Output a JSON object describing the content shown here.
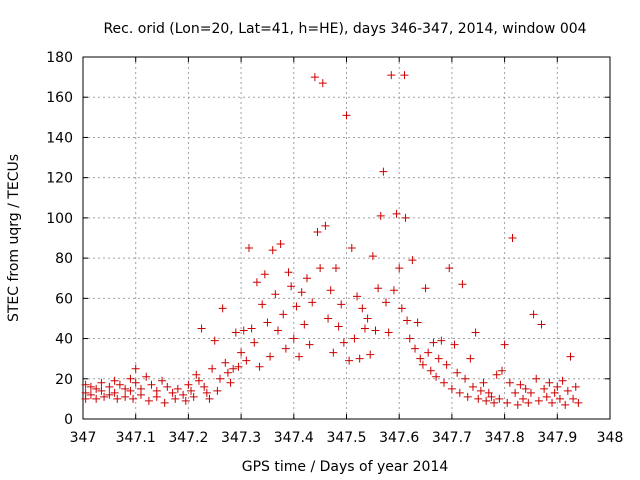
{
  "chart_data": {
    "type": "scatter",
    "title": "Rec. orid (Lon=20, Lat=41, h=HE), days 346-347, 2014, window 004",
    "xlabel": "GPS time / Days of year 2014",
    "ylabel": "STEC from uqrg / TECUs",
    "xlim": [
      347,
      348
    ],
    "ylim": [
      0,
      180
    ],
    "xticks": [
      "347",
      "347.1",
      "347.2",
      "347.3",
      "347.4",
      "347.5",
      "347.6",
      "347.7",
      "347.8",
      "347.9",
      "348"
    ],
    "yticks": [
      "0",
      "20",
      "40",
      "60",
      "80",
      "100",
      "120",
      "140",
      "160",
      "180"
    ],
    "grid": true,
    "marker": "plus",
    "color": "#cc0000",
    "series": [
      {
        "points": [
          [
            347.005,
            17
          ],
          [
            347.005,
            13
          ],
          [
            347.005,
            10
          ],
          [
            347.015,
            16
          ],
          [
            347.015,
            12
          ],
          [
            347.025,
            15
          ],
          [
            347.025,
            10
          ],
          [
            347.035,
            18
          ],
          [
            347.035,
            14
          ],
          [
            347.04,
            11
          ],
          [
            347.05,
            16
          ],
          [
            347.05,
            12
          ],
          [
            347.06,
            19
          ],
          [
            347.06,
            13
          ],
          [
            347.065,
            10
          ],
          [
            347.07,
            17
          ],
          [
            347.08,
            15
          ],
          [
            347.08,
            11
          ],
          [
            347.09,
            20
          ],
          [
            347.09,
            14
          ],
          [
            347.095,
            10
          ],
          [
            347.1,
            25
          ],
          [
            347.1,
            18
          ],
          [
            347.11,
            15
          ],
          [
            347.11,
            12
          ],
          [
            347.12,
            21
          ],
          [
            347.125,
            9
          ],
          [
            347.13,
            17
          ],
          [
            347.14,
            14
          ],
          [
            347.14,
            11
          ],
          [
            347.15,
            19
          ],
          [
            347.155,
            8
          ],
          [
            347.16,
            16
          ],
          [
            347.17,
            13
          ],
          [
            347.175,
            10
          ],
          [
            347.18,
            15
          ],
          [
            347.19,
            12
          ],
          [
            347.195,
            9
          ],
          [
            347.2,
            17
          ],
          [
            347.205,
            14
          ],
          [
            347.21,
            11
          ],
          [
            347.215,
            22
          ],
          [
            347.22,
            19
          ],
          [
            347.225,
            45
          ],
          [
            347.23,
            16
          ],
          [
            347.235,
            13
          ],
          [
            347.24,
            10
          ],
          [
            347.245,
            25
          ],
          [
            347.25,
            39
          ],
          [
            347.255,
            14
          ],
          [
            347.26,
            20
          ],
          [
            347.265,
            55
          ],
          [
            347.27,
            28
          ],
          [
            347.275,
            23
          ],
          [
            347.28,
            18
          ],
          [
            347.285,
            25
          ],
          [
            347.29,
            43
          ],
          [
            347.295,
            26
          ],
          [
            347.3,
            33
          ],
          [
            347.305,
            44
          ],
          [
            347.31,
            29
          ],
          [
            347.315,
            85
          ],
          [
            347.32,
            45
          ],
          [
            347.325,
            38
          ],
          [
            347.33,
            68
          ],
          [
            347.335,
            26
          ],
          [
            347.34,
            57
          ],
          [
            347.345,
            72
          ],
          [
            347.35,
            48
          ],
          [
            347.355,
            31
          ],
          [
            347.36,
            84
          ],
          [
            347.365,
            62
          ],
          [
            347.37,
            44
          ],
          [
            347.375,
            87
          ],
          [
            347.38,
            52
          ],
          [
            347.385,
            35
          ],
          [
            347.39,
            73
          ],
          [
            347.395,
            66
          ],
          [
            347.4,
            40
          ],
          [
            347.405,
            56
          ],
          [
            347.41,
            31
          ],
          [
            347.415,
            63
          ],
          [
            347.42,
            47
          ],
          [
            347.425,
            70
          ],
          [
            347.43,
            37
          ],
          [
            347.435,
            58
          ],
          [
            347.44,
            170
          ],
          [
            347.445,
            93
          ],
          [
            347.45,
            75
          ],
          [
            347.455,
            167
          ],
          [
            347.46,
            96
          ],
          [
            347.465,
            50
          ],
          [
            347.47,
            64
          ],
          [
            347.475,
            33
          ],
          [
            347.48,
            75
          ],
          [
            347.485,
            46
          ],
          [
            347.49,
            57
          ],
          [
            347.495,
            38
          ],
          [
            347.5,
            151
          ],
          [
            347.505,
            29
          ],
          [
            347.51,
            85
          ],
          [
            347.515,
            40
          ],
          [
            347.52,
            61
          ],
          [
            347.525,
            30
          ],
          [
            347.53,
            55
          ],
          [
            347.535,
            45
          ],
          [
            347.54,
            50
          ],
          [
            347.545,
            32
          ],
          [
            347.55,
            81
          ],
          [
            347.555,
            44
          ],
          [
            347.56,
            65
          ],
          [
            347.565,
            101
          ],
          [
            347.57,
            123
          ],
          [
            347.575,
            58
          ],
          [
            347.58,
            43
          ],
          [
            347.585,
            171
          ],
          [
            347.59,
            64
          ],
          [
            347.595,
            102
          ],
          [
            347.6,
            75
          ],
          [
            347.605,
            55
          ],
          [
            347.61,
            171
          ],
          [
            347.612,
            100
          ],
          [
            347.615,
            49
          ],
          [
            347.62,
            40
          ],
          [
            347.625,
            79
          ],
          [
            347.63,
            35
          ],
          [
            347.635,
            48
          ],
          [
            347.64,
            30
          ],
          [
            347.645,
            27
          ],
          [
            347.65,
            65
          ],
          [
            347.655,
            33
          ],
          [
            347.66,
            24
          ],
          [
            347.665,
            38
          ],
          [
            347.67,
            21
          ],
          [
            347.675,
            30
          ],
          [
            347.68,
            39
          ],
          [
            347.685,
            18
          ],
          [
            347.69,
            27
          ],
          [
            347.695,
            75
          ],
          [
            347.7,
            15
          ],
          [
            347.705,
            37
          ],
          [
            347.71,
            23
          ],
          [
            347.715,
            13
          ],
          [
            347.72,
            67
          ],
          [
            347.725,
            20
          ],
          [
            347.73,
            11
          ],
          [
            347.735,
            30
          ],
          [
            347.74,
            16
          ],
          [
            347.745,
            43
          ],
          [
            347.75,
            10
          ],
          [
            347.755,
            14
          ],
          [
            347.76,
            18
          ],
          [
            347.765,
            9
          ],
          [
            347.77,
            13
          ],
          [
            347.775,
            11
          ],
          [
            347.78,
            8
          ],
          [
            347.785,
            22
          ],
          [
            347.79,
            10
          ],
          [
            347.795,
            24
          ],
          [
            347.8,
            37
          ],
          [
            347.805,
            8
          ],
          [
            347.81,
            18
          ],
          [
            347.815,
            90
          ],
          [
            347.82,
            13
          ],
          [
            347.825,
            7
          ],
          [
            347.83,
            17
          ],
          [
            347.835,
            10
          ],
          [
            347.84,
            15
          ],
          [
            347.845,
            8
          ],
          [
            347.85,
            13
          ],
          [
            347.855,
            52
          ],
          [
            347.86,
            20
          ],
          [
            347.865,
            9
          ],
          [
            347.87,
            47
          ],
          [
            347.875,
            15
          ],
          [
            347.88,
            11
          ],
          [
            347.885,
            18
          ],
          [
            347.89,
            8
          ],
          [
            347.895,
            13
          ],
          [
            347.9,
            16
          ],
          [
            347.905,
            10
          ],
          [
            347.91,
            19
          ],
          [
            347.915,
            7
          ],
          [
            347.92,
            14
          ],
          [
            347.925,
            31
          ],
          [
            347.93,
            10
          ],
          [
            347.935,
            16
          ],
          [
            347.94,
            8
          ]
        ]
      }
    ]
  }
}
